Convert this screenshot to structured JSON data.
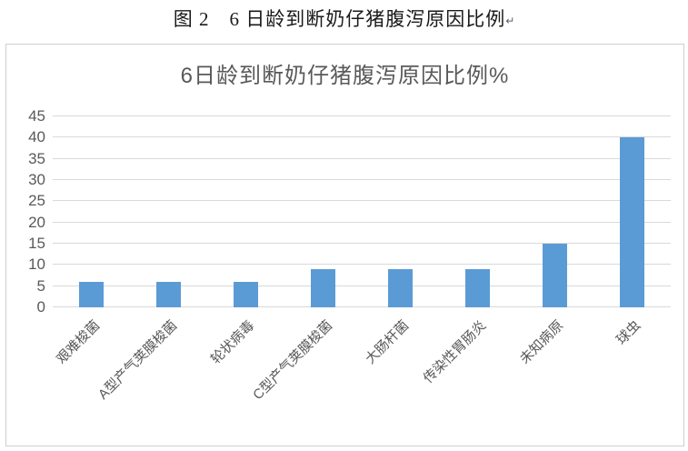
{
  "caption": {
    "text": "图 2　6 日龄到断奶仔猪腹泻原因比例",
    "return_mark": "↵"
  },
  "chart_data": {
    "type": "bar",
    "title": "6日龄到断奶仔猪腹泻原因比例%",
    "categories": [
      "艰难梭菌",
      "A型产气荚膜梭菌",
      "轮状病毒",
      "C型产气荚膜梭菌",
      "大肠杆菌",
      "传染性胃肠炎",
      "未知病原",
      "球虫"
    ],
    "values": [
      6,
      6,
      6,
      9,
      9,
      9,
      15,
      40
    ],
    "xlabel": "",
    "ylabel": "",
    "ylim": [
      0,
      45
    ],
    "yticks": [
      0,
      5,
      10,
      15,
      20,
      25,
      30,
      35,
      40,
      45
    ],
    "grid": true,
    "legend": "none",
    "bar_color": "#5B9BD5",
    "gridline_color": "#d9d9d9",
    "axis_label_color": "#595959",
    "title_color": "#595959"
  }
}
